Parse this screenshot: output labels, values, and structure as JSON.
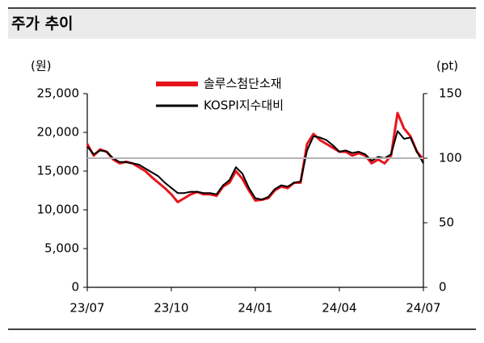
{
  "chart_data": {
    "type": "line",
    "title": "주가 추이",
    "y_unit": "(원)",
    "y2_unit": "(pt)",
    "categories": [
      "23/07",
      null,
      null,
      null,
      null,
      null,
      null,
      null,
      null,
      null,
      null,
      null,
      null,
      "23/10",
      null,
      null,
      null,
      null,
      null,
      null,
      null,
      null,
      null,
      null,
      null,
      null,
      "24/01",
      null,
      null,
      null,
      null,
      null,
      null,
      null,
      null,
      null,
      null,
      null,
      null,
      "24/04",
      null,
      null,
      null,
      null,
      null,
      null,
      null,
      null,
      null,
      null,
      null,
      null,
      "24/07"
    ],
    "series": [
      {
        "name": "솔루스첨단소재",
        "color": "#e8141b",
        "axis": "y",
        "values": [
          18500,
          17000,
          17800,
          17500,
          16500,
          16000,
          16200,
          16000,
          15500,
          15000,
          14200,
          13500,
          12800,
          12000,
          11000,
          11500,
          12000,
          12300,
          12000,
          12000,
          11800,
          13000,
          13500,
          15000,
          14000,
          12500,
          11200,
          11300,
          11500,
          12500,
          13000,
          12800,
          13500,
          13500,
          18500,
          19800,
          19000,
          18500,
          18000,
          17500,
          17500,
          17000,
          17300,
          17000,
          16000,
          16500,
          16000,
          17000,
          22500,
          20500,
          19500,
          17500,
          16500
        ]
      },
      {
        "name": "KOSPI지수대비",
        "color": "#000000",
        "axis": "y2",
        "values": [
          109,
          103,
          106,
          105,
          100,
          97,
          97,
          96,
          95,
          92,
          89,
          86,
          81,
          77,
          73,
          73,
          74,
          74,
          73,
          73,
          72,
          79,
          83,
          93,
          88,
          77,
          69,
          68,
          70,
          76,
          79,
          78,
          81,
          82,
          106,
          117,
          116,
          114,
          110,
          105,
          106,
          104,
          105,
          103,
          98,
          101,
          100,
          103,
          121,
          115,
          116,
          105,
          96
        ]
      }
    ],
    "ylim": [
      0,
      25000
    ],
    "yticks": [
      0,
      {
        "value": 5000,
        "label": "5,000"
      },
      {
        "value": 10000,
        "label": "10,000"
      },
      {
        "value": 15000,
        "label": "15,000"
      },
      {
        "value": 20000,
        "label": "20,000"
      },
      {
        "value": 25000,
        "label": "25,000"
      }
    ],
    "y2lim": [
      0,
      150
    ],
    "y2ticks": [
      0,
      50,
      100,
      150
    ],
    "reference_line": {
      "value": 100,
      "axis": "y2",
      "color": "#b4b4b4"
    },
    "grid": false,
    "legend": "top"
  }
}
